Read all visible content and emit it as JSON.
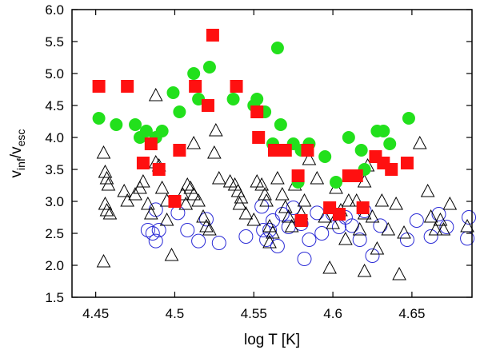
{
  "chart_data": {
    "type": "scatter",
    "title": "",
    "xlabel": "log T [K]",
    "ylabel_parts": [
      "v",
      "inf",
      "/v",
      "esc"
    ],
    "xlim": [
      4.435,
      4.688
    ],
    "ylim": [
      1.5,
      6.0
    ],
    "xticks": [
      4.45,
      4.5,
      4.55,
      4.6,
      4.65
    ],
    "xtick_labels": [
      "4.45",
      "4.5",
      "4.55",
      "4.6",
      "4.65"
    ],
    "yticks": [
      1.5,
      2.0,
      2.5,
      3.0,
      3.5,
      4.0,
      4.5,
      5.0,
      5.5,
      6.0
    ],
    "ytick_labels": [
      "1.5",
      "2.0",
      "2.5",
      "3.0",
      "3.5",
      "4.0",
      "4.5",
      "5.0",
      "5.5",
      "6.0"
    ],
    "grid": false,
    "legend": "none",
    "series": [
      {
        "name": "open-circles",
        "marker": "circle-open",
        "color": "#2b2bd6",
        "points": [
          [
            4.483,
            2.55
          ],
          [
            4.486,
            2.5
          ],
          [
            4.488,
            2.38
          ],
          [
            4.49,
            2.55
          ],
          [
            4.488,
            2.87
          ],
          [
            4.502,
            2.82
          ],
          [
            4.508,
            2.55
          ],
          [
            4.515,
            2.38
          ],
          [
            4.52,
            2.72
          ],
          [
            4.528,
            2.35
          ],
          [
            4.545,
            2.45
          ],
          [
            4.555,
            2.92
          ],
          [
            4.556,
            2.55
          ],
          [
            4.558,
            2.4
          ],
          [
            4.562,
            2.7
          ],
          [
            4.565,
            2.3
          ],
          [
            4.568,
            2.8
          ],
          [
            4.572,
            2.6
          ],
          [
            4.575,
            2.9
          ],
          [
            4.58,
            2.65
          ],
          [
            4.585,
            2.4
          ],
          [
            4.59,
            2.82
          ],
          [
            4.593,
            2.5
          ],
          [
            4.6,
            2.8
          ],
          [
            4.604,
            2.6
          ],
          [
            4.608,
            2.75
          ],
          [
            4.612,
            2.62
          ],
          [
            4.617,
            2.4
          ],
          [
            4.62,
            2.85
          ],
          [
            4.625,
            2.15
          ],
          [
            4.63,
            2.62
          ],
          [
            4.647,
            2.4
          ],
          [
            4.653,
            2.7
          ],
          [
            4.662,
            2.45
          ],
          [
            4.667,
            2.8
          ],
          [
            4.672,
            2.6
          ],
          [
            4.685,
            2.42
          ],
          [
            4.686,
            2.75
          ],
          [
            4.582,
            2.1
          ],
          [
            4.56,
            2.55
          ]
        ]
      },
      {
        "name": "open-triangles",
        "marker": "triangle-open",
        "color": "#000000",
        "points": [
          [
            4.455,
            3.75
          ],
          [
            4.456,
            3.45
          ],
          [
            4.457,
            3.35
          ],
          [
            4.458,
            3.25
          ],
          [
            4.456,
            2.95
          ],
          [
            4.457,
            2.85
          ],
          [
            4.459,
            2.8
          ],
          [
            4.455,
            2.05
          ],
          [
            4.468,
            3.15
          ],
          [
            4.47,
            3.0
          ],
          [
            4.475,
            3.1
          ],
          [
            4.478,
            3.2
          ],
          [
            4.48,
            3.3
          ],
          [
            4.483,
            2.95
          ],
          [
            4.485,
            2.8
          ],
          [
            4.488,
            4.65
          ],
          [
            4.488,
            3.6
          ],
          [
            4.49,
            3.55
          ],
          [
            4.492,
            3.2
          ],
          [
            4.495,
            2.7
          ],
          [
            4.495,
            3.0
          ],
          [
            4.498,
            2.15
          ],
          [
            4.505,
            3.1
          ],
          [
            4.507,
            2.95
          ],
          [
            4.508,
            3.25
          ],
          [
            4.51,
            3.2
          ],
          [
            4.512,
            3.1
          ],
          [
            4.512,
            3.9
          ],
          [
            4.515,
            3.0
          ],
          [
            4.518,
            2.75
          ],
          [
            4.52,
            2.6
          ],
          [
            4.522,
            2.55
          ],
          [
            4.525,
            3.75
          ],
          [
            4.526,
            4.1
          ],
          [
            4.528,
            3.35
          ],
          [
            4.535,
            3.3
          ],
          [
            4.538,
            3.25
          ],
          [
            4.54,
            3.15
          ],
          [
            4.541,
            2.95
          ],
          [
            4.542,
            3.05
          ],
          [
            4.545,
            2.8
          ],
          [
            4.55,
            2.7
          ],
          [
            4.552,
            3.3
          ],
          [
            4.555,
            3.25
          ],
          [
            4.557,
            3.1
          ],
          [
            4.558,
            3.0
          ],
          [
            4.56,
            2.6
          ],
          [
            4.562,
            2.5
          ],
          [
            4.565,
            3.35
          ],
          [
            4.568,
            3.1
          ],
          [
            4.57,
            2.9
          ],
          [
            4.572,
            2.75
          ],
          [
            4.574,
            2.6
          ],
          [
            4.576,
            3.25
          ],
          [
            4.58,
            2.8
          ],
          [
            4.582,
            3.0
          ],
          [
            4.585,
            3.65
          ],
          [
            4.59,
            3.35
          ],
          [
            4.595,
            2.75
          ],
          [
            4.6,
            2.65
          ],
          [
            4.602,
            3.2
          ],
          [
            4.605,
            2.85
          ],
          [
            4.608,
            2.4
          ],
          [
            4.61,
            3.0
          ],
          [
            4.615,
            3.0
          ],
          [
            4.617,
            2.55
          ],
          [
            4.62,
            2.8
          ],
          [
            4.622,
            3.55
          ],
          [
            4.625,
            2.75
          ],
          [
            4.628,
            2.25
          ],
          [
            4.631,
            3.0
          ],
          [
            4.635,
            2.55
          ],
          [
            4.64,
            2.95
          ],
          [
            4.642,
            1.85
          ],
          [
            4.645,
            2.5
          ],
          [
            4.655,
            3.9
          ],
          [
            4.66,
            3.15
          ],
          [
            4.662,
            2.75
          ],
          [
            4.665,
            2.55
          ],
          [
            4.668,
            2.7
          ],
          [
            4.67,
            2.55
          ],
          [
            4.674,
            2.95
          ],
          [
            4.685,
            2.6
          ],
          [
            4.598,
            1.95
          ],
          [
            4.62,
            1.9
          ],
          [
            4.56,
            2.35
          ],
          [
            4.62,
            3.3
          ]
        ]
      },
      {
        "name": "green-filled-circles",
        "marker": "circle-filled",
        "color": "#22e01c",
        "points": [
          [
            4.452,
            4.3
          ],
          [
            4.463,
            4.2
          ],
          [
            4.475,
            4.2
          ],
          [
            4.478,
            4.0
          ],
          [
            4.482,
            4.1
          ],
          [
            4.488,
            4.0
          ],
          [
            4.492,
            4.1
          ],
          [
            4.499,
            4.7
          ],
          [
            4.503,
            4.4
          ],
          [
            4.512,
            5.0
          ],
          [
            4.515,
            4.6
          ],
          [
            4.522,
            5.1
          ],
          [
            4.537,
            4.6
          ],
          [
            4.55,
            4.5
          ],
          [
            4.552,
            4.6
          ],
          [
            4.557,
            4.4
          ],
          [
            4.562,
            3.9
          ],
          [
            4.565,
            5.4
          ],
          [
            4.567,
            4.2
          ],
          [
            4.575,
            3.9
          ],
          [
            4.58,
            3.8
          ],
          [
            4.585,
            3.9
          ],
          [
            4.595,
            3.7
          ],
          [
            4.602,
            3.3
          ],
          [
            4.61,
            4.0
          ],
          [
            4.618,
            3.8
          ],
          [
            4.62,
            3.5
          ],
          [
            4.628,
            4.1
          ],
          [
            4.632,
            4.1
          ],
          [
            4.636,
            3.9
          ],
          [
            4.648,
            4.3
          ],
          [
            4.578,
            3.3
          ]
        ]
      },
      {
        "name": "red-filled-squares",
        "marker": "square-filled",
        "color": "#ff1010",
        "points": [
          [
            4.452,
            4.8
          ],
          [
            4.47,
            4.8
          ],
          [
            4.48,
            3.6
          ],
          [
            4.485,
            3.9
          ],
          [
            4.49,
            3.5
          ],
          [
            4.5,
            3.0
          ],
          [
            4.503,
            3.8
          ],
          [
            4.513,
            4.8
          ],
          [
            4.521,
            4.5
          ],
          [
            4.524,
            5.6
          ],
          [
            4.539,
            4.8
          ],
          [
            4.552,
            4.4
          ],
          [
            4.553,
            4.0
          ],
          [
            4.563,
            3.8
          ],
          [
            4.57,
            3.8
          ],
          [
            4.578,
            3.4
          ],
          [
            4.58,
            2.7
          ],
          [
            4.584,
            3.8
          ],
          [
            4.598,
            2.9
          ],
          [
            4.604,
            2.8
          ],
          [
            4.61,
            3.4
          ],
          [
            4.615,
            3.4
          ],
          [
            4.619,
            2.9
          ],
          [
            4.627,
            3.7
          ],
          [
            4.632,
            3.6
          ],
          [
            4.637,
            3.5
          ],
          [
            4.647,
            3.6
          ]
        ]
      }
    ]
  }
}
